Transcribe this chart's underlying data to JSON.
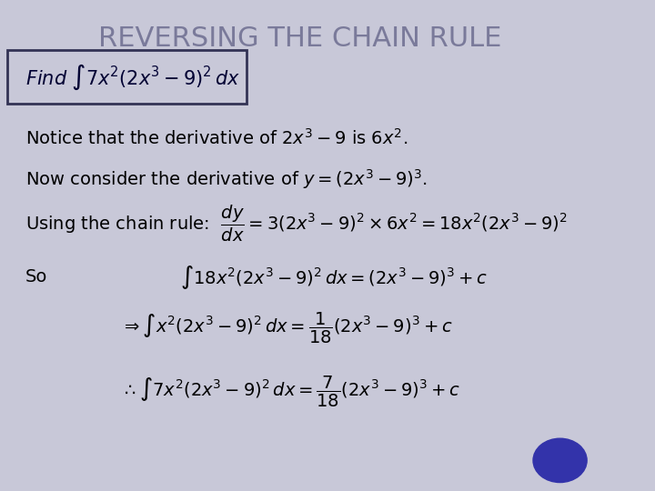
{
  "title": "REVERSING THE CHAIN RULE",
  "title_color": "#7a7a9a",
  "background_color": "#c8c8d8",
  "text_color": "#000000",
  "box_color": "#000000",
  "title_fontsize": 22,
  "body_fontsize": 14,
  "math_fontsize": 14
}
